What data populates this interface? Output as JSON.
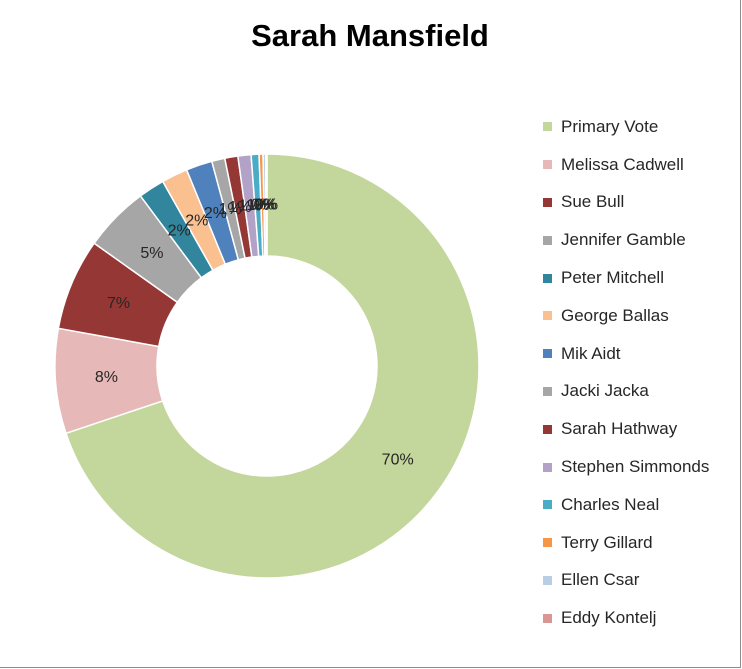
{
  "chart_data": {
    "type": "pie",
    "title": "Sarah Mansfield",
    "donut": true,
    "legend_position": "right",
    "series": [
      {
        "name": "Primary Vote",
        "value": 70,
        "label": "70%",
        "color": "#c3d69b"
      },
      {
        "name": "Melissa Cadwell",
        "value": 8,
        "label": "8%",
        "color": "#e6b9b8"
      },
      {
        "name": "Sue Bull",
        "value": 7,
        "label": "7%",
        "color": "#953735"
      },
      {
        "name": "Jennifer Gamble",
        "value": 5,
        "label": "5%",
        "color": "#a6a6a6"
      },
      {
        "name": "Peter Mitchell",
        "value": 2,
        "label": "2%",
        "color": "#31859c"
      },
      {
        "name": "George Ballas",
        "value": 2,
        "label": "2%",
        "color": "#fac090"
      },
      {
        "name": "Mik Aidt",
        "value": 2,
        "label": "2%",
        "color": "#4f81bd"
      },
      {
        "name": "Jacki Jacka",
        "value": 1,
        "label": "1%",
        "color": "#a6a6a6"
      },
      {
        "name": "Sarah Hathway",
        "value": 1,
        "label": "1%",
        "color": "#953735"
      },
      {
        "name": "Stephen Simmonds",
        "value": 1,
        "label": "1%",
        "color": "#b3a2c7"
      },
      {
        "name": "Charles Neal",
        "value": 0.6,
        "label": "1%",
        "color": "#4bacc6"
      },
      {
        "name": "Terry Gillard",
        "value": 0.3,
        "label": "0%",
        "color": "#f79646"
      },
      {
        "name": "Ellen Csar",
        "value": 0.2,
        "label": "0%",
        "color": "#b9cde5"
      },
      {
        "name": "Eddy Kontelj",
        "value": 0.1,
        "label": "0%",
        "color": "#d99694"
      }
    ]
  }
}
